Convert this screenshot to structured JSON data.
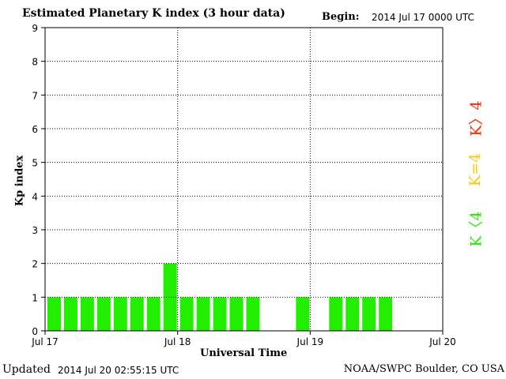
{
  "header": {
    "title": "Estimated Planetary K index (3 hour data)",
    "begin_label": "Begin:",
    "begin_value": "2014 Jul 17 0000 UTC"
  },
  "footer": {
    "updated_label": "Updated",
    "updated_value": "2014 Jul 20 02:55:15 UTC",
    "credit": "NOAA/SWPC Boulder, CO USA"
  },
  "legend": {
    "high": {
      "label": "K〉4",
      "color": "#ff2a00"
    },
    "equal": {
      "label": "K=4",
      "color": "#ffc800"
    },
    "low": {
      "label": "K〈4",
      "color": "#22ee00"
    }
  },
  "chart_data": {
    "type": "bar",
    "title": "Estimated Planetary K index (3 hour data)",
    "xlabel": "Universal Time",
    "ylabel": "Kp index",
    "ylim": [
      0,
      9
    ],
    "yticks": [
      "0",
      "1",
      "2",
      "3",
      "4",
      "5",
      "6",
      "7",
      "8",
      "9"
    ],
    "xticks": [
      "Jul 17",
      "Jul 18",
      "Jul 19",
      "Jul 20"
    ],
    "grid": true,
    "bar_color": "#22ee00",
    "categories": [
      "Jul 17 00",
      "Jul 17 03",
      "Jul 17 06",
      "Jul 17 09",
      "Jul 17 12",
      "Jul 17 15",
      "Jul 17 18",
      "Jul 17 21",
      "Jul 18 00",
      "Jul 18 03",
      "Jul 18 06",
      "Jul 18 09",
      "Jul 18 12",
      "Jul 18 15",
      "Jul 18 18",
      "Jul 18 21",
      "Jul 19 00",
      "Jul 19 03",
      "Jul 19 06",
      "Jul 19 09",
      "Jul 19 12",
      "Jul 19 15",
      "Jul 19 18",
      "Jul 19 21"
    ],
    "values": [
      1,
      1,
      1,
      1,
      1,
      1,
      1,
      2,
      1,
      1,
      1,
      1,
      1,
      null,
      null,
      1,
      null,
      1,
      1,
      1,
      1,
      null,
      null,
      null
    ]
  }
}
